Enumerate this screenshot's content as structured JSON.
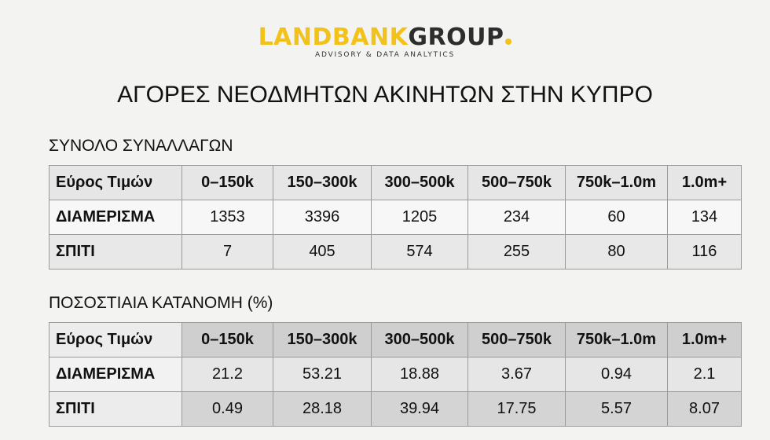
{
  "header": {
    "logo_primary": "LANDBANK",
    "logo_secondary": "GROUP",
    "tagline": "ADVISORY & DATA ANALYTICS",
    "title": "ΑΓΟΡΕΣ ΝΕΟΔΜΗΤΩΝ ΑΚΙΝΗΤΩΝ ΣΤΗΝ ΚΥΠΡΟ"
  },
  "sections": [
    {
      "heading": "ΣΥΝΟΛΟ ΣΥΝΑΛΛΑΓΩΝ",
      "table": {
        "header": [
          "Εύρος Τιμών",
          "0–150k",
          "150–300k",
          "300–500k",
          "500–750k",
          "750k–1.0m",
          "1.0m+"
        ],
        "rows": [
          [
            "ΔΙΑΜΕΡΙΣΜΑ",
            "1353",
            "3396",
            "1205",
            "234",
            "60",
            "134"
          ],
          [
            "ΣΠΙΤΙ",
            "7",
            "405",
            "574",
            "255",
            "80",
            "116"
          ]
        ]
      }
    },
    {
      "heading": "ΠΟΣΟΣΤΙΑΙΑ ΚΑΤΑΝΟΜΗ (%)",
      "table": {
        "header": [
          "Εύρος Τιμών",
          "0–150k",
          "150–300k",
          "300–500k",
          "500–750k",
          "750k–1.0m",
          "1.0m+"
        ],
        "rows": [
          [
            "ΔΙΑΜΕΡΙΣΜΑ",
            "21.2",
            "53.21",
            "18.88",
            "3.67",
            "0.94",
            "2.1"
          ],
          [
            "ΣΠΙΤΙ",
            "0.49",
            "28.18",
            "39.94",
            "17.75",
            "5.57",
            "8.07"
          ]
        ]
      }
    }
  ]
}
